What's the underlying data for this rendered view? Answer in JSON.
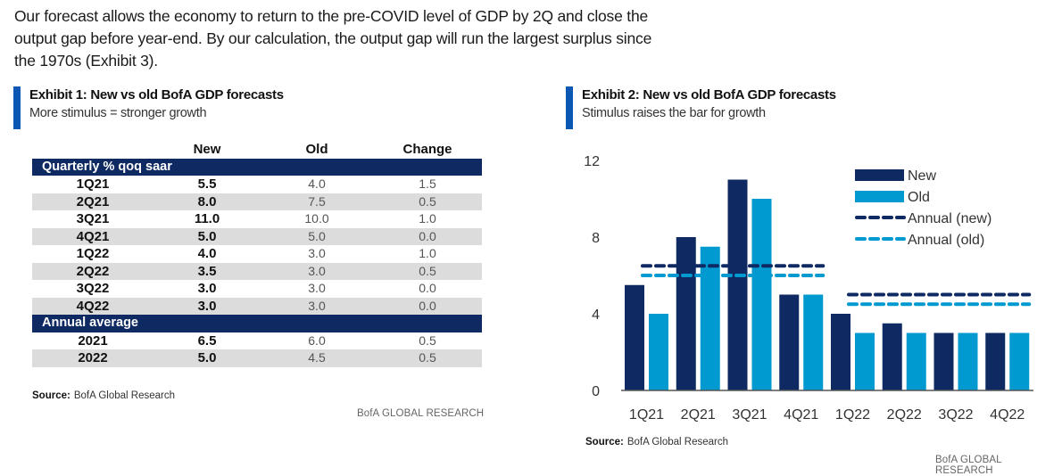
{
  "intro_text": "Our forecast allows the economy to return to the pre-COVID level of GDP by 2Q and close the output gap before year-end. By our calculation, the output gap will run the largest surplus since the 1970s (Exhibit 3).",
  "exhibit1": {
    "title": "Exhibit 1: New vs old BofA GDP forecasts",
    "subtitle": "More stimulus = stronger growth",
    "columns": [
      "",
      "New",
      "Old",
      "Change"
    ],
    "sections": [
      {
        "label": "Quarterly % qoq saar",
        "rows": [
          {
            "label": "1Q21",
            "new": "5.5",
            "old": "4.0",
            "change": "1.5"
          },
          {
            "label": "2Q21",
            "new": "8.0",
            "old": "7.5",
            "change": "0.5"
          },
          {
            "label": "3Q21",
            "new": "11.0",
            "old": "10.0",
            "change": "1.0"
          },
          {
            "label": "4Q21",
            "new": "5.0",
            "old": "5.0",
            "change": "0.0"
          },
          {
            "label": "1Q22",
            "new": "4.0",
            "old": "3.0",
            "change": "1.0"
          },
          {
            "label": "2Q22",
            "new": "3.5",
            "old": "3.0",
            "change": "0.5"
          },
          {
            "label": "3Q22",
            "new": "3.0",
            "old": "3.0",
            "change": "0.0"
          },
          {
            "label": "4Q22",
            "new": "3.0",
            "old": "3.0",
            "change": "0.0"
          }
        ]
      },
      {
        "label": "Annual average",
        "rows": [
          {
            "label": "2021",
            "new": "6.5",
            "old": "6.0",
            "change": "0.5"
          },
          {
            "label": "2022",
            "new": "5.0",
            "old": "4.5",
            "change": "0.5"
          }
        ]
      }
    ],
    "source_label": "Source:",
    "source_text": "BofA Global Research",
    "brand": "BofA GLOBAL RESEARCH"
  },
  "exhibit2": {
    "title": "Exhibit 2: New vs old BofA GDP forecasts",
    "subtitle": "Stimulus raises the bar for growth",
    "source_label": "Source:",
    "source_text": "BofA Global Research",
    "brand": "BofA GLOBAL RESEARCH"
  },
  "colors": {
    "new": "#0f2a62",
    "old": "#0099d0",
    "accent": "#0b57b4",
    "section_header": "#0f2a62",
    "row_alt": "#dcdcdc"
  },
  "chart_data": {
    "type": "bar",
    "title": "Exhibit 2: New vs old BofA GDP forecasts",
    "subtitle": "Stimulus raises the bar for growth",
    "xlabel": "",
    "ylabel": "",
    "categories": [
      "1Q21",
      "2Q21",
      "3Q21",
      "4Q21",
      "1Q22",
      "2Q22",
      "3Q22",
      "4Q22"
    ],
    "series": [
      {
        "name": "New",
        "kind": "bar",
        "values": [
          5.5,
          8.0,
          11.0,
          5.0,
          4.0,
          3.5,
          3.0,
          3.0
        ]
      },
      {
        "name": "Old",
        "kind": "bar",
        "values": [
          4.0,
          7.5,
          10.0,
          5.0,
          3.0,
          3.0,
          3.0,
          3.0
        ]
      },
      {
        "name": "Annual (new)",
        "kind": "dashed-line",
        "segments": [
          {
            "from": "1Q21",
            "to": "4Q21",
            "value": 6.5
          },
          {
            "from": "1Q22",
            "to": "4Q22",
            "value": 5.0
          }
        ]
      },
      {
        "name": "Annual (old)",
        "kind": "dashed-line",
        "segments": [
          {
            "from": "1Q21",
            "to": "4Q21",
            "value": 6.0
          },
          {
            "from": "1Q22",
            "to": "4Q22",
            "value": 4.5
          }
        ]
      }
    ],
    "yticks": [
      0,
      4,
      8,
      12
    ],
    "ylim": [
      0,
      12
    ],
    "grid": false,
    "legend": {
      "position": "top-right",
      "entries": [
        "New",
        "Old",
        "Annual (new)",
        "Annual (old)"
      ]
    }
  }
}
